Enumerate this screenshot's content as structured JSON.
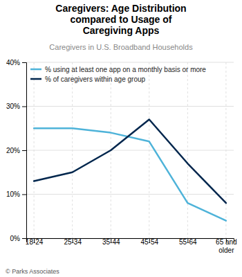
{
  "chart_data": {
    "type": "line",
    "title": "Caregivers: Age Distribution\ncompared to Usage of\nCaregiving Apps",
    "subtitle": "Caregivers in U.S. Broadband Households",
    "footer": "© Parks Associates",
    "categories": [
      "18-24",
      "25-34",
      "35-44",
      "45-54",
      "55-64",
      "65 and\nolder"
    ],
    "series": [
      {
        "name": "% using at least one app on a monthly basis or more",
        "color": "#4eb3d9",
        "values": [
          25,
          25,
          24,
          22,
          8,
          4
        ]
      },
      {
        "name": "% of caregivers within age group",
        "color": "#00264d",
        "values": [
          13,
          15,
          20,
          27,
          17,
          8
        ]
      }
    ],
    "ylim": [
      0,
      40
    ],
    "yticks": [
      {
        "value": 0,
        "label": "0%"
      },
      {
        "value": 10,
        "label": "10%"
      },
      {
        "value": 20,
        "label": "20%"
      },
      {
        "value": 30,
        "label": "30%"
      },
      {
        "value": 40,
        "label": "40%"
      }
    ],
    "grid": true,
    "legend": "upper left"
  }
}
